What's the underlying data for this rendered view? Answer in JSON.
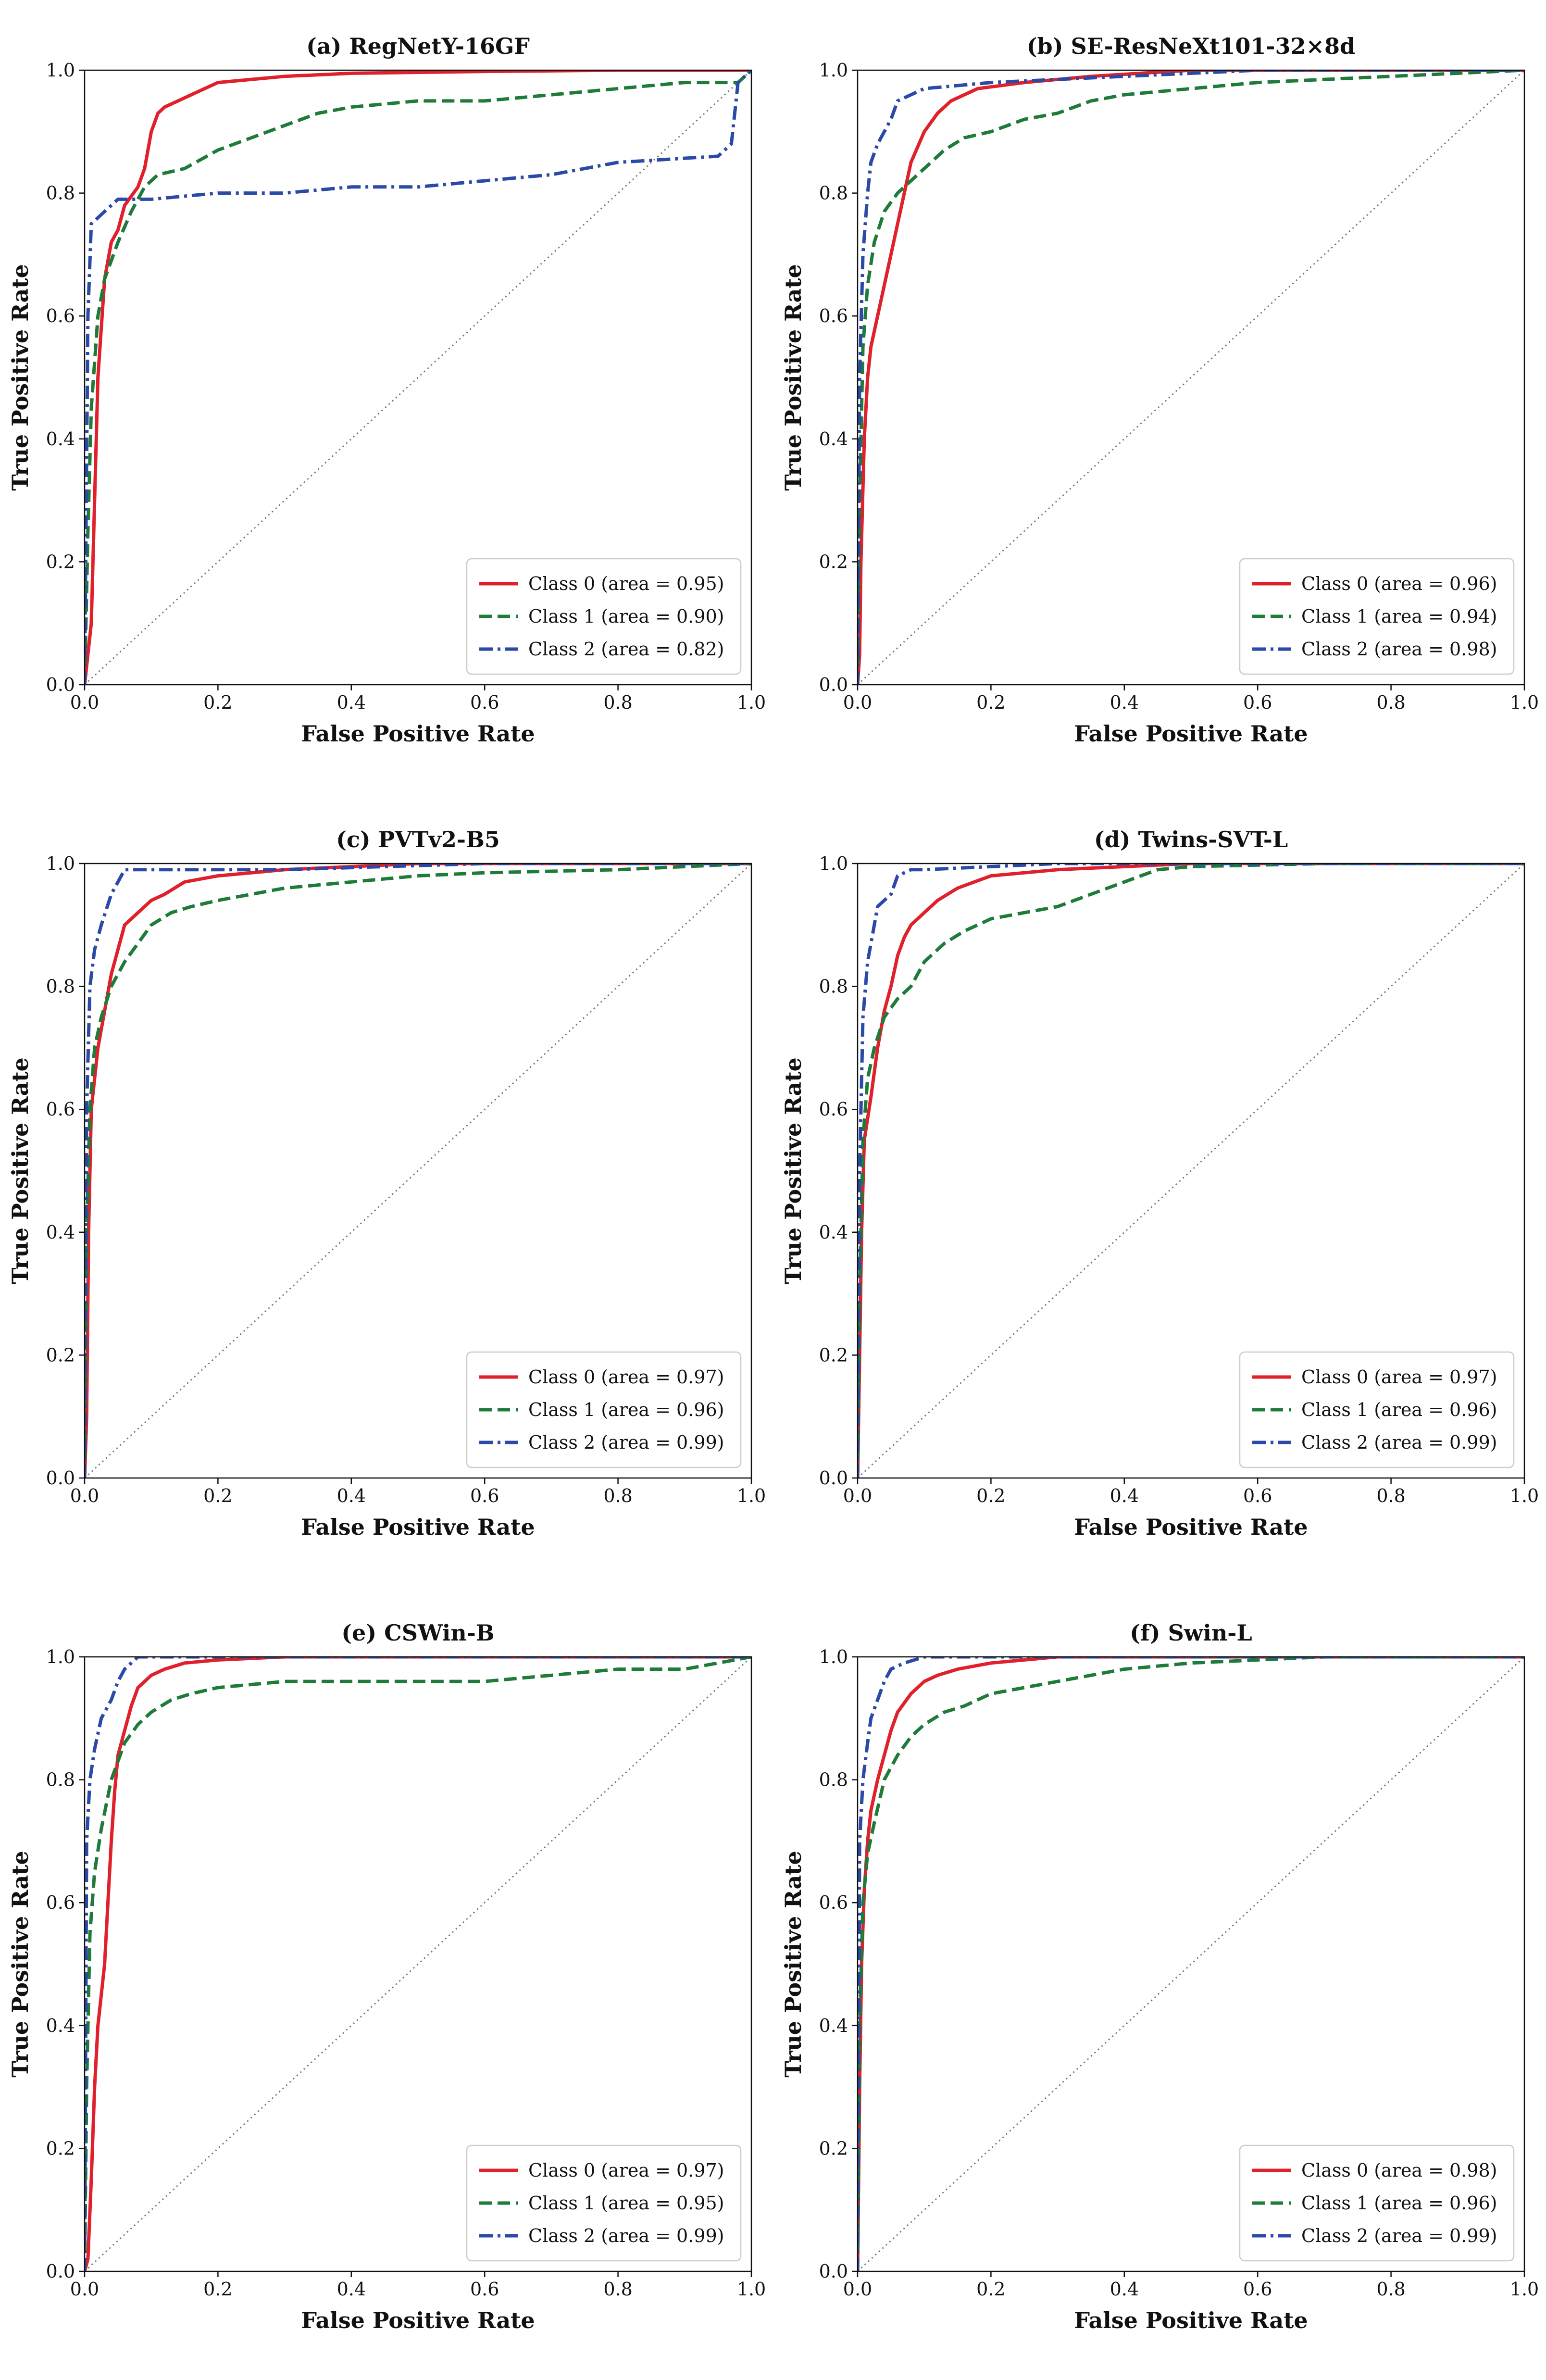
{
  "figure": {
    "colors": {
      "class0": "#e0202a",
      "class1": "#1e7b3a",
      "class2": "#2b4aa8",
      "diag": "#777777"
    }
  },
  "chart_data": [
    {
      "type": "line",
      "title": "(a) RegNetY-16GF",
      "xlabel": "False Positive Rate",
      "ylabel": "True Positive Rate",
      "xlim": [
        0,
        1
      ],
      "ylim": [
        0,
        1
      ],
      "xticks": [
        "0.0",
        "0.2",
        "0.4",
        "0.6",
        "0.8",
        "1.0"
      ],
      "yticks": [
        "0.0",
        "0.2",
        "0.4",
        "0.6",
        "0.8",
        "1.0"
      ],
      "legend_position": "bottom-right",
      "series": [
        {
          "name": "Class 0 (area = 0.95)",
          "style": "solid",
          "x": [
            0,
            0.01,
            0.015,
            0.02,
            0.03,
            0.04,
            0.05,
            0.06,
            0.08,
            0.09,
            0.1,
            0.11,
            0.12,
            0.14,
            0.16,
            0.2,
            0.3,
            0.4,
            0.6,
            0.8,
            1
          ],
          "y": [
            0,
            0.1,
            0.3,
            0.5,
            0.66,
            0.72,
            0.74,
            0.78,
            0.81,
            0.84,
            0.9,
            0.93,
            0.94,
            0.95,
            0.96,
            0.98,
            0.99,
            0.995,
            0.998,
            1,
            1
          ]
        },
        {
          "name": "Class 1 (area = 0.90)",
          "style": "dashed",
          "x": [
            0,
            0.005,
            0.01,
            0.02,
            0.03,
            0.05,
            0.07,
            0.09,
            0.11,
            0.15,
            0.2,
            0.25,
            0.3,
            0.35,
            0.4,
            0.5,
            0.6,
            0.7,
            0.8,
            0.9,
            0.98,
            1
          ],
          "y": [
            0,
            0.25,
            0.45,
            0.6,
            0.66,
            0.72,
            0.77,
            0.81,
            0.83,
            0.84,
            0.87,
            0.89,
            0.91,
            0.93,
            0.94,
            0.95,
            0.95,
            0.96,
            0.97,
            0.98,
            0.98,
            1
          ]
        },
        {
          "name": "Class 2 (area = 0.82)",
          "style": "dashdot",
          "x": [
            0,
            0.005,
            0.01,
            0.03,
            0.05,
            0.08,
            0.1,
            0.2,
            0.3,
            0.4,
            0.5,
            0.6,
            0.7,
            0.8,
            0.95,
            0.97,
            0.98,
            1
          ],
          "y": [
            0,
            0.6,
            0.75,
            0.77,
            0.79,
            0.79,
            0.79,
            0.8,
            0.8,
            0.81,
            0.81,
            0.82,
            0.83,
            0.85,
            0.86,
            0.88,
            0.98,
            1
          ]
        }
      ]
    },
    {
      "type": "line",
      "title": "(b) SE-ResNeXt101-32×8d",
      "xlabel": "False Positive Rate",
      "ylabel": "True Positive Rate",
      "xlim": [
        0,
        1
      ],
      "ylim": [
        0,
        1
      ],
      "xticks": [
        "0.0",
        "0.2",
        "0.4",
        "0.6",
        "0.8",
        "1.0"
      ],
      "yticks": [
        "0.0",
        "0.2",
        "0.4",
        "0.6",
        "0.8",
        "1.0"
      ],
      "legend_position": "bottom-right",
      "series": [
        {
          "name": "Class 0 (area = 0.96)",
          "style": "solid",
          "x": [
            0,
            0.003,
            0.005,
            0.01,
            0.015,
            0.02,
            0.03,
            0.04,
            0.05,
            0.06,
            0.07,
            0.08,
            0.1,
            0.12,
            0.14,
            0.18,
            0.25,
            0.35,
            0.5,
            0.7,
            1
          ],
          "y": [
            0,
            0.05,
            0.2,
            0.4,
            0.5,
            0.55,
            0.6,
            0.65,
            0.7,
            0.75,
            0.8,
            0.85,
            0.9,
            0.93,
            0.95,
            0.97,
            0.98,
            0.99,
            1,
            1,
            1
          ]
        },
        {
          "name": "Class 1 (area = 0.94)",
          "style": "dashed",
          "x": [
            0,
            0.003,
            0.008,
            0.015,
            0.025,
            0.04,
            0.06,
            0.08,
            0.1,
            0.13,
            0.16,
            0.2,
            0.25,
            0.3,
            0.35,
            0.4,
            0.5,
            0.6,
            0.8,
            1
          ],
          "y": [
            0,
            0.3,
            0.55,
            0.65,
            0.72,
            0.77,
            0.8,
            0.82,
            0.84,
            0.87,
            0.89,
            0.9,
            0.92,
            0.93,
            0.95,
            0.96,
            0.97,
            0.98,
            0.99,
            1
          ]
        },
        {
          "name": "Class 2 (area = 0.98)",
          "style": "dashdot",
          "x": [
            0,
            0.003,
            0.008,
            0.015,
            0.02,
            0.03,
            0.05,
            0.06,
            0.08,
            0.1,
            0.2,
            0.4,
            0.6,
            1
          ],
          "y": [
            0,
            0.5,
            0.7,
            0.8,
            0.85,
            0.88,
            0.92,
            0.95,
            0.96,
            0.97,
            0.98,
            0.99,
            1,
            1
          ]
        }
      ]
    },
    {
      "type": "line",
      "title": "(c) PVTv2-B5",
      "xlabel": "False Positive Rate",
      "ylabel": "True Positive Rate",
      "xlim": [
        0,
        1
      ],
      "ylim": [
        0,
        1
      ],
      "xticks": [
        "0.0",
        "0.2",
        "0.4",
        "0.6",
        "0.8",
        "1.0"
      ],
      "yticks": [
        "0.0",
        "0.2",
        "0.4",
        "0.6",
        "0.8",
        "1.0"
      ],
      "legend_position": "bottom-right",
      "series": [
        {
          "name": "Class 0 (area = 0.97)",
          "style": "solid",
          "x": [
            0,
            0.003,
            0.006,
            0.01,
            0.02,
            0.03,
            0.04,
            0.05,
            0.06,
            0.08,
            0.1,
            0.12,
            0.15,
            0.2,
            0.3,
            0.5,
            0.7,
            1
          ],
          "y": [
            0,
            0.1,
            0.4,
            0.6,
            0.7,
            0.76,
            0.82,
            0.86,
            0.9,
            0.92,
            0.94,
            0.95,
            0.97,
            0.98,
            0.99,
            1,
            1,
            1
          ]
        },
        {
          "name": "Class 1 (area = 0.96)",
          "style": "dashed",
          "x": [
            0,
            0.003,
            0.008,
            0.015,
            0.025,
            0.04,
            0.06,
            0.08,
            0.1,
            0.13,
            0.16,
            0.2,
            0.25,
            0.3,
            0.4,
            0.5,
            0.6,
            0.8,
            1
          ],
          "y": [
            0,
            0.4,
            0.6,
            0.7,
            0.75,
            0.8,
            0.84,
            0.87,
            0.9,
            0.92,
            0.93,
            0.94,
            0.95,
            0.96,
            0.97,
            0.98,
            0.985,
            0.99,
            1
          ]
        },
        {
          "name": "Class 2 (area = 0.99)",
          "style": "dashdot",
          "x": [
            0,
            0.003,
            0.008,
            0.015,
            0.025,
            0.04,
            0.05,
            0.06,
            0.1,
            0.3,
            0.6,
            1
          ],
          "y": [
            0,
            0.6,
            0.8,
            0.86,
            0.9,
            0.95,
            0.97,
            0.99,
            0.99,
            0.99,
            1,
            1
          ]
        }
      ]
    },
    {
      "type": "line",
      "title": "(d) Twins-SVT-L",
      "xlabel": "False Positive Rate",
      "ylabel": "True Positive Rate",
      "xlim": [
        0,
        1
      ],
      "ylim": [
        0,
        1
      ],
      "xticks": [
        "0.0",
        "0.2",
        "0.4",
        "0.6",
        "0.8",
        "1.0"
      ],
      "yticks": [
        "0.0",
        "0.2",
        "0.4",
        "0.6",
        "0.8",
        "1.0"
      ],
      "legend_position": "bottom-right",
      "series": [
        {
          "name": "Class 0 (area = 0.97)",
          "style": "solid",
          "x": [
            0,
            0.003,
            0.006,
            0.01,
            0.02,
            0.03,
            0.04,
            0.05,
            0.06,
            0.07,
            0.08,
            0.1,
            0.12,
            0.15,
            0.2,
            0.3,
            0.5,
            1
          ],
          "y": [
            0,
            0.2,
            0.4,
            0.55,
            0.62,
            0.7,
            0.76,
            0.8,
            0.85,
            0.88,
            0.9,
            0.92,
            0.94,
            0.96,
            0.98,
            0.99,
            1,
            1
          ]
        },
        {
          "name": "Class 1 (area = 0.96)",
          "style": "dashed",
          "x": [
            0,
            0.003,
            0.008,
            0.015,
            0.025,
            0.04,
            0.06,
            0.08,
            0.1,
            0.13,
            0.16,
            0.2,
            0.25,
            0.3,
            0.35,
            0.4,
            0.45,
            0.5,
            0.7,
            1
          ],
          "y": [
            0,
            0.3,
            0.55,
            0.65,
            0.7,
            0.75,
            0.78,
            0.8,
            0.84,
            0.87,
            0.89,
            0.91,
            0.92,
            0.93,
            0.95,
            0.97,
            0.99,
            0.995,
            1,
            1
          ]
        },
        {
          "name": "Class 2 (area = 0.99)",
          "style": "dashdot",
          "x": [
            0,
            0.003,
            0.008,
            0.015,
            0.025,
            0.03,
            0.05,
            0.06,
            0.08,
            0.1,
            0.2,
            0.3,
            0.5,
            1
          ],
          "y": [
            0,
            0.5,
            0.75,
            0.84,
            0.9,
            0.93,
            0.95,
            0.98,
            0.99,
            0.99,
            0.995,
            1,
            1,
            1
          ]
        }
      ]
    },
    {
      "type": "line",
      "title": "(e) CSWin-B",
      "xlabel": "False Positive Rate",
      "ylabel": "True Positive Rate",
      "xlim": [
        0,
        1
      ],
      "ylim": [
        0,
        1
      ],
      "xticks": [
        "0.0",
        "0.2",
        "0.4",
        "0.6",
        "0.8",
        "1.0"
      ],
      "yticks": [
        "0.0",
        "0.2",
        "0.4",
        "0.6",
        "0.8",
        "1.0"
      ],
      "legend_position": "bottom-right",
      "series": [
        {
          "name": "Class 0 (area = 0.97)",
          "style": "solid",
          "x": [
            0,
            0.005,
            0.01,
            0.015,
            0.02,
            0.025,
            0.03,
            0.035,
            0.04,
            0.045,
            0.05,
            0.06,
            0.07,
            0.08,
            0.1,
            0.12,
            0.15,
            0.2,
            0.3,
            0.5,
            1
          ],
          "y": [
            0,
            0.02,
            0.15,
            0.3,
            0.4,
            0.45,
            0.5,
            0.6,
            0.7,
            0.78,
            0.84,
            0.88,
            0.92,
            0.95,
            0.97,
            0.98,
            0.99,
            0.995,
            1,
            1,
            1
          ]
        },
        {
          "name": "Class 1 (area = 0.95)",
          "style": "dashed",
          "x": [
            0,
            0.003,
            0.008,
            0.015,
            0.025,
            0.04,
            0.06,
            0.08,
            0.1,
            0.13,
            0.16,
            0.2,
            0.3,
            0.4,
            0.5,
            0.6,
            0.7,
            0.8,
            0.9,
            0.95,
            1
          ],
          "y": [
            0,
            0.3,
            0.55,
            0.65,
            0.72,
            0.8,
            0.86,
            0.89,
            0.91,
            0.93,
            0.94,
            0.95,
            0.96,
            0.96,
            0.96,
            0.96,
            0.97,
            0.98,
            0.98,
            0.99,
            1
          ]
        },
        {
          "name": "Class 2 (area = 0.99)",
          "style": "dashdot",
          "x": [
            0,
            0.003,
            0.008,
            0.015,
            0.025,
            0.04,
            0.05,
            0.06,
            0.08,
            0.1,
            0.2,
            0.5,
            1
          ],
          "y": [
            0,
            0.7,
            0.8,
            0.85,
            0.9,
            0.93,
            0.96,
            0.98,
            1,
            1,
            1,
            1,
            1
          ]
        }
      ]
    },
    {
      "type": "line",
      "title": "(f) Swin-L",
      "xlabel": "False Positive Rate",
      "ylabel": "True Positive Rate",
      "xlim": [
        0,
        1
      ],
      "ylim": [
        0,
        1
      ],
      "xticks": [
        "0.0",
        "0.2",
        "0.4",
        "0.6",
        "0.8",
        "1.0"
      ],
      "yticks": [
        "0.0",
        "0.2",
        "0.4",
        "0.6",
        "0.8",
        "1.0"
      ],
      "legend_position": "bottom-right",
      "series": [
        {
          "name": "Class 0 (area = 0.98)",
          "style": "solid",
          "x": [
            0,
            0.003,
            0.006,
            0.01,
            0.015,
            0.02,
            0.03,
            0.04,
            0.05,
            0.06,
            0.08,
            0.1,
            0.12,
            0.15,
            0.2,
            0.3,
            0.5,
            1
          ],
          "y": [
            0,
            0.3,
            0.5,
            0.62,
            0.7,
            0.75,
            0.8,
            0.84,
            0.88,
            0.91,
            0.94,
            0.96,
            0.97,
            0.98,
            0.99,
            1,
            1,
            1
          ]
        },
        {
          "name": "Class 1 (area = 0.96)",
          "style": "dashed",
          "x": [
            0,
            0.003,
            0.008,
            0.015,
            0.025,
            0.04,
            0.06,
            0.08,
            0.1,
            0.13,
            0.16,
            0.2,
            0.25,
            0.3,
            0.35,
            0.4,
            0.5,
            0.6,
            0.7,
            1
          ],
          "y": [
            0,
            0.4,
            0.6,
            0.68,
            0.73,
            0.8,
            0.84,
            0.87,
            0.89,
            0.91,
            0.92,
            0.94,
            0.95,
            0.96,
            0.97,
            0.98,
            0.99,
            0.995,
            1,
            1
          ]
        },
        {
          "name": "Class 2 (area = 0.99)",
          "style": "dashdot",
          "x": [
            0,
            0.003,
            0.008,
            0.015,
            0.02,
            0.03,
            0.04,
            0.05,
            0.07,
            0.1,
            0.2,
            0.4,
            1
          ],
          "y": [
            0,
            0.7,
            0.8,
            0.86,
            0.9,
            0.93,
            0.96,
            0.98,
            0.99,
            1,
            1,
            1,
            1
          ]
        }
      ]
    }
  ]
}
